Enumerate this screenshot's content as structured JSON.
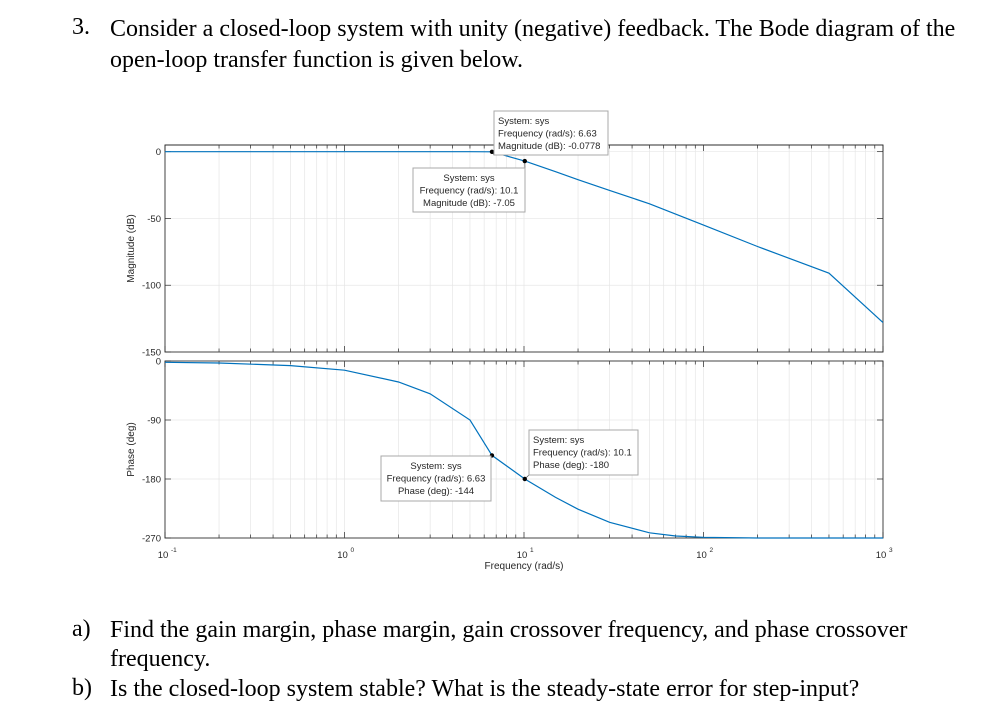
{
  "question": {
    "number": "3.",
    "text": "Consider a closed-loop system with unity (negative) feedback. The Bode diagram of the open-loop transfer function is given below."
  },
  "parts": [
    {
      "label": "a)",
      "text": "Find the gain margin, phase margin, gain crossover frequency, and phase crossover frequency."
    },
    {
      "label": "b)",
      "text": "Is the closed-loop system stable? What is the steady-state error for step-input?"
    }
  ],
  "chart_data": {
    "type": "line",
    "subtype": "bode",
    "line_color": "#0072bd",
    "xlabel": "Frequency (rad/s)",
    "x_scale": "log",
    "xlim": [
      0.1,
      1000
    ],
    "x_ticks": [
      "10",
      "10",
      "10",
      "10",
      "10"
    ],
    "x_tick_exponents": [
      "-1",
      "0",
      "1",
      "2",
      "3"
    ],
    "grid": true,
    "magnitude": {
      "ylabel": "Magnitude (dB)",
      "ylim": [
        -150,
        5
      ],
      "y_ticks": [
        "0",
        "-50",
        "-100",
        "-150"
      ],
      "x": [
        0.1,
        0.3,
        1,
        2,
        3,
        5,
        6.63,
        10.1,
        15,
        20,
        30,
        50,
        100,
        200,
        500,
        1000
      ],
      "y": [
        0,
        0,
        0,
        0,
        0,
        0,
        -0.0778,
        -7.05,
        -15,
        -21,
        -29,
        -39,
        -55,
        -71,
        -91,
        -128
      ]
    },
    "phase": {
      "ylabel": "Phase (deg)",
      "ylim": [
        -270,
        0
      ],
      "y_ticks": [
        "0",
        "-90",
        "-180",
        "-270"
      ],
      "x": [
        0.1,
        0.2,
        0.5,
        1,
        2,
        3,
        5,
        6.63,
        10.1,
        15,
        20,
        30,
        50,
        70,
        100,
        200,
        500,
        1000
      ],
      "y": [
        -2,
        -3,
        -7,
        -14,
        -32,
        -50,
        -90,
        -144,
        -180,
        -208,
        -226,
        -246,
        -262,
        -267,
        -269,
        -270,
        -270,
        -270
      ]
    },
    "datatips": [
      {
        "system": "System: sys",
        "freq": "Frequency (rad/s): 6.63",
        "value": "Magnitude (dB): -0.0778",
        "x": 6.63,
        "y": -0.0778,
        "axis": "magnitude"
      },
      {
        "system": "System: sys",
        "freq": "Frequency (rad/s): 10.1",
        "value": "Magnitude (dB): -7.05",
        "x": 10.1,
        "y": -7.05,
        "axis": "magnitude"
      },
      {
        "system": "System: sys",
        "freq": "Frequency (rad/s): 6.63",
        "value": "Phase (deg): -144",
        "x": 6.63,
        "y": -144,
        "axis": "phase"
      },
      {
        "system": "System: sys",
        "freq": "Frequency (rad/s): 10.1",
        "value": "Phase (deg): -180",
        "x": 10.1,
        "y": -180,
        "axis": "phase"
      }
    ]
  }
}
